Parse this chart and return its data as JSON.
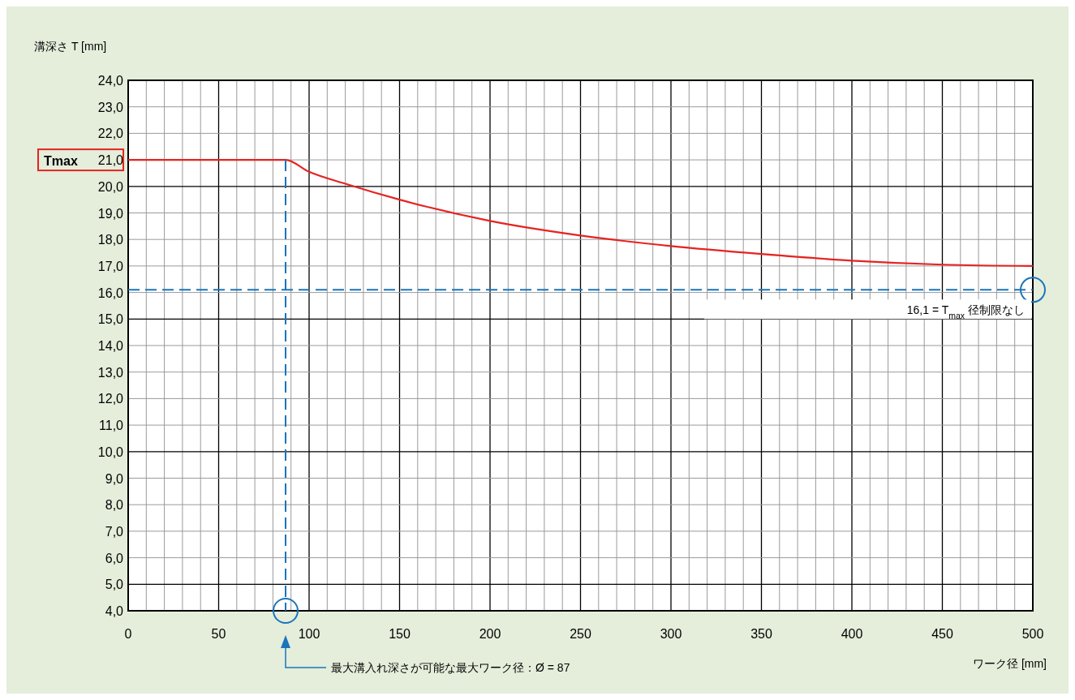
{
  "chart_data": {
    "type": "line",
    "ylabel": "溝深さ T [mm]",
    "xlabel": "ワーク径 [mm]",
    "x": [
      0,
      87,
      100,
      120,
      150,
      200,
      250,
      300,
      350,
      400,
      450,
      500
    ],
    "series": [
      {
        "color": "#e52421",
        "values": [
          21,
          21,
          20.55,
          20.1,
          19.5,
          18.7,
          18.15,
          17.75,
          17.45,
          17.2,
          17.05,
          17
        ]
      }
    ],
    "xlim": [
      0,
      500
    ],
    "xticks": [
      0,
      {
        "value": 10,
        "label": null
      },
      {
        "value": 20,
        "label": null
      },
      {
        "value": 30,
        "label": null
      },
      {
        "value": 40,
        "label": null
      },
      50,
      {
        "value": 60,
        "label": null
      },
      {
        "value": 70,
        "label": null
      },
      {
        "value": 80,
        "label": null
      },
      {
        "value": 90,
        "label": null
      },
      100,
      {
        "value": 110,
        "label": null
      },
      {
        "value": 120,
        "label": null
      },
      {
        "value": 130,
        "label": null
      },
      {
        "value": 140,
        "label": null
      },
      150,
      {
        "value": 160,
        "label": null
      },
      {
        "value": 170,
        "label": null
      },
      {
        "value": 180,
        "label": null
      },
      {
        "value": 190,
        "label": null
      },
      200,
      {
        "value": 210,
        "label": null
      },
      {
        "value": 220,
        "label": null
      },
      {
        "value": 230,
        "label": null
      },
      {
        "value": 240,
        "label": null
      },
      250,
      {
        "value": 260,
        "label": null
      },
      {
        "value": 270,
        "label": null
      },
      {
        "value": 280,
        "label": null
      },
      {
        "value": 290,
        "label": null
      },
      300,
      {
        "value": 310,
        "label": null
      },
      {
        "value": 320,
        "label": null
      },
      {
        "value": 330,
        "label": null
      },
      {
        "value": 340,
        "label": null
      },
      350,
      {
        "value": 360,
        "label": null
      },
      {
        "value": 370,
        "label": null
      },
      {
        "value": 380,
        "label": null
      },
      {
        "value": 390,
        "label": null
      },
      400,
      {
        "value": 410,
        "label": null
      },
      {
        "value": 420,
        "label": null
      },
      {
        "value": 430,
        "label": null
      },
      {
        "value": 440,
        "label": null
      },
      450,
      {
        "value": 460,
        "label": null
      },
      {
        "value": 470,
        "label": null
      },
      {
        "value": 480,
        "label": null
      },
      {
        "value": 490,
        "label": null
      },
      500
    ],
    "ylim": [
      4,
      24
    ],
    "yticks": [
      {
        "value": 4,
        "label": "4,0"
      },
      {
        "value": 5,
        "label": "5,0"
      },
      {
        "value": 6,
        "label": "6,0"
      },
      {
        "value": 7,
        "label": "7,0"
      },
      {
        "value": 8,
        "label": "8,0"
      },
      {
        "value": 9,
        "label": "9,0"
      },
      {
        "value": 10,
        "label": "10,0"
      },
      {
        "value": 11,
        "label": "11,0"
      },
      {
        "value": 12,
        "label": "12,0"
      },
      {
        "value": 13,
        "label": "13,0"
      },
      {
        "value": 14,
        "label": "14,0"
      },
      {
        "value": 15,
        "label": "15,0"
      },
      {
        "value": 16,
        "label": "16,0"
      },
      {
        "value": 17,
        "label": "17,0"
      },
      {
        "value": 18,
        "label": "18,0"
      },
      {
        "value": 19,
        "label": "19,0"
      },
      {
        "value": 20,
        "label": "20,0"
      },
      {
        "value": 21,
        "label": "21,0"
      },
      {
        "value": 22,
        "label": "22,0"
      },
      {
        "value": 23,
        "label": "23,0"
      },
      {
        "value": 24,
        "label": "24,0"
      }
    ],
    "grid": true,
    "marker": "none",
    "line_style": "solid",
    "ref_lines": [
      {
        "axis": "x",
        "value": 87,
        "color": "#1a75bb",
        "line_style": "dashed"
      },
      {
        "axis": "y",
        "value": 16.1,
        "label": "16,1 = T$_{max}$ 径制限なし",
        "color": "#1a75bb",
        "line_style": "dashed"
      }
    ],
    "annotations": [
      "Tmax",
      "最大溝入れ深さが可能な最大ワーク径：Ø = 87"
    ]
  }
}
